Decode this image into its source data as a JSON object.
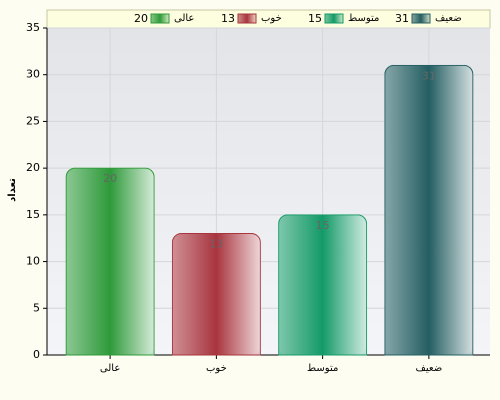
{
  "chart_data": {
    "type": "bar",
    "y_label": "تعداد",
    "categories": [
      "عالی",
      "خوب",
      "متوسط",
      "ضعیف"
    ],
    "values": [
      20,
      13,
      15,
      31
    ],
    "colors": [
      "#2e9a3a",
      "#a8343e",
      "#149a68",
      "#245e62"
    ],
    "ylim": [
      0,
      35
    ],
    "yticks": [
      0,
      5,
      10,
      15,
      20,
      25,
      30,
      35
    ],
    "grid": true,
    "legend": "top"
  }
}
